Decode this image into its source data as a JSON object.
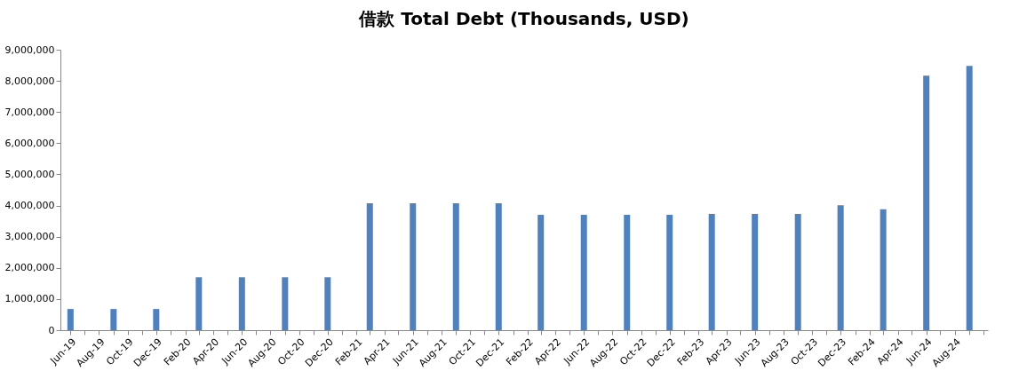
{
  "chart_data": {
    "type": "bar",
    "title": "借款 Total Debt (Thousands, USD)",
    "x": [
      "2019-06",
      "2019-09",
      "2019-12",
      "2020-03",
      "2020-06",
      "2020-09",
      "2020-12",
      "2021-03",
      "2021-06",
      "2021-09",
      "2021-12",
      "2022-03",
      "2022-06",
      "2022-09",
      "2022-12",
      "2023-03",
      "2023-06",
      "2023-09",
      "2023-12",
      "2024-03",
      "2024-06",
      "2024-09"
    ],
    "values": [
      680000,
      680000,
      680000,
      1700000,
      1700000,
      1700000,
      1700000,
      4070000,
      4070000,
      4070000,
      4070000,
      3700000,
      3700000,
      3700000,
      3700000,
      3730000,
      3730000,
      3730000,
      4010000,
      3880000,
      8170000,
      8480000
    ],
    "color": "#4f81bd",
    "xlim": [
      "2019-05-20",
      "2024-10-01"
    ],
    "xticks": [
      {
        "value": "2019-06",
        "label": "Jun-19"
      },
      {
        "value": "2019-07",
        "label": null
      },
      {
        "value": "2019-08",
        "label": "Aug-19"
      },
      {
        "value": "2019-09",
        "label": null
      },
      {
        "value": "2019-10",
        "label": "Oct-19"
      },
      {
        "value": "2019-11",
        "label": null
      },
      {
        "value": "2019-12",
        "label": "Dec-19"
      },
      {
        "value": "2020-01",
        "label": null
      },
      {
        "value": "2020-02",
        "label": "Feb-20"
      },
      {
        "value": "2020-03",
        "label": null
      },
      {
        "value": "2020-04",
        "label": "Apr-20"
      },
      {
        "value": "2020-05",
        "label": null
      },
      {
        "value": "2020-06",
        "label": "Jun-20"
      },
      {
        "value": "2020-07",
        "label": null
      },
      {
        "value": "2020-08",
        "label": "Aug-20"
      },
      {
        "value": "2020-09",
        "label": null
      },
      {
        "value": "2020-10",
        "label": "Oct-20"
      },
      {
        "value": "2020-11",
        "label": null
      },
      {
        "value": "2020-12",
        "label": "Dec-20"
      },
      {
        "value": "2021-01",
        "label": null
      },
      {
        "value": "2021-02",
        "label": "Feb-21"
      },
      {
        "value": "2021-03",
        "label": null
      },
      {
        "value": "2021-04",
        "label": "Apr-21"
      },
      {
        "value": "2021-05",
        "label": null
      },
      {
        "value": "2021-06",
        "label": "Jun-21"
      },
      {
        "value": "2021-07",
        "label": null
      },
      {
        "value": "2021-08",
        "label": "Aug-21"
      },
      {
        "value": "2021-09",
        "label": null
      },
      {
        "value": "2021-10",
        "label": "Oct-21"
      },
      {
        "value": "2021-11",
        "label": null
      },
      {
        "value": "2021-12",
        "label": "Dec-21"
      },
      {
        "value": "2022-01",
        "label": null
      },
      {
        "value": "2022-02",
        "label": "Feb-22"
      },
      {
        "value": "2022-03",
        "label": null
      },
      {
        "value": "2022-04",
        "label": "Apr-22"
      },
      {
        "value": "2022-05",
        "label": null
      },
      {
        "value": "2022-06",
        "label": "Jun-22"
      },
      {
        "value": "2022-07",
        "label": null
      },
      {
        "value": "2022-08",
        "label": "Aug-22"
      },
      {
        "value": "2022-09",
        "label": null
      },
      {
        "value": "2022-10",
        "label": "Oct-22"
      },
      {
        "value": "2022-11",
        "label": null
      },
      {
        "value": "2022-12",
        "label": "Dec-22"
      },
      {
        "value": "2023-01",
        "label": null
      },
      {
        "value": "2023-02",
        "label": "Feb-23"
      },
      {
        "value": "2023-03",
        "label": null
      },
      {
        "value": "2023-04",
        "label": "Apr-23"
      },
      {
        "value": "2023-05",
        "label": null
      },
      {
        "value": "2023-06",
        "label": "Jun-23"
      },
      {
        "value": "2023-07",
        "label": null
      },
      {
        "value": "2023-08",
        "label": "Aug-23"
      },
      {
        "value": "2023-09",
        "label": null
      },
      {
        "value": "2023-10",
        "label": "Oct-23"
      },
      {
        "value": "2023-11",
        "label": null
      },
      {
        "value": "2023-12",
        "label": "Dec-23"
      },
      {
        "value": "2024-01",
        "label": null
      },
      {
        "value": "2024-02",
        "label": "Feb-24"
      },
      {
        "value": "2024-03",
        "label": null
      },
      {
        "value": "2024-04",
        "label": "Apr-24"
      },
      {
        "value": "2024-05",
        "label": null
      },
      {
        "value": "2024-06",
        "label": "Jun-24"
      },
      {
        "value": "2024-07",
        "label": null
      },
      {
        "value": "2024-08",
        "label": "Aug-24"
      },
      {
        "value": "2024-09",
        "label": null
      },
      {
        "value": "2024-10",
        "label": null
      }
    ],
    "ylim": [
      0,
      9000000
    ],
    "yticks": [
      0,
      {
        "value": 1000000,
        "label": "1,000,000"
      },
      {
        "value": 2000000,
        "label": "2,000,000"
      },
      {
        "value": 3000000,
        "label": "3,000,000"
      },
      {
        "value": 4000000,
        "label": "4,000,000"
      },
      {
        "value": 5000000,
        "label": "5,000,000"
      },
      {
        "value": 6000000,
        "label": "6,000,000"
      },
      {
        "value": 7000000,
        "label": "7,000,000"
      },
      {
        "value": 8000000,
        "label": "8,000,000"
      },
      {
        "value": 9000000,
        "label": "9,000,000"
      }
    ],
    "grid": false
  }
}
